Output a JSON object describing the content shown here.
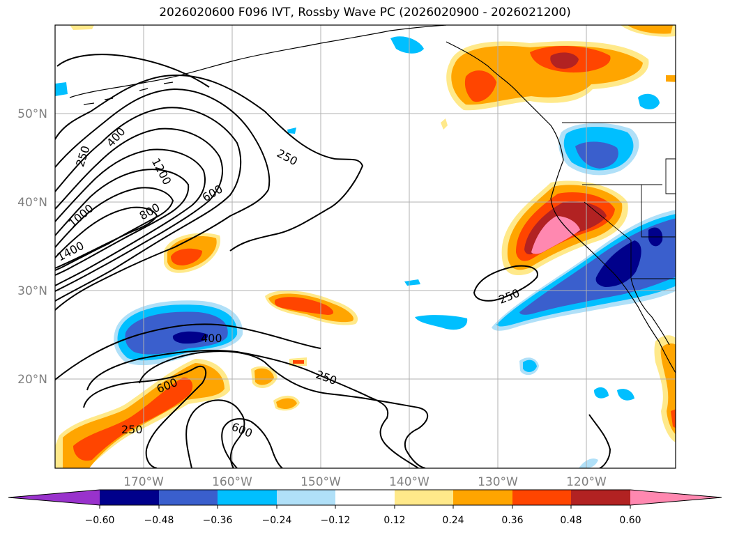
{
  "title": "2026020600 F096 IVT, Rossby Wave PC (2026020900 - 2026021200)",
  "colors": {
    "background": "#ffffff",
    "ocean": "#ffffff",
    "gridline": "#b0b0b0",
    "contour": "#000000",
    "pos_012": "#ffe98a",
    "pos_024": "#ffa500",
    "pos_036": "#ff4500",
    "pos_048": "#b22222",
    "pos_060": "#ff88b0",
    "neg_012": "#b0e0f8",
    "neg_024": "#00bfff",
    "neg_036": "#3a5fcd",
    "neg_048": "#00008b",
    "neg_060": "#9932cc"
  },
  "axes": {
    "lon_ticks": [
      "170°W",
      "160°W",
      "150°W",
      "140°W",
      "130°W",
      "120°W"
    ],
    "lat_ticks": [
      "50°N",
      "40°N",
      "30°N",
      "20°N"
    ]
  },
  "contour_labels": [
    "250",
    "400",
    "1200",
    "250",
    "1000",
    "800",
    "600",
    "1400",
    "250",
    "400",
    "600",
    "250",
    "250",
    "600"
  ],
  "colorbar": {
    "ticks": [
      "−0.60",
      "−0.48",
      "−0.36",
      "−0.24",
      "−0.12",
      "0.12",
      "0.24",
      "0.36",
      "0.48",
      "0.60"
    ],
    "colors": [
      "#9932cc",
      "#00008b",
      "#3a5fcd",
      "#00bfff",
      "#b0e0f8",
      "#ffffff",
      "#ffe98a",
      "#ffa500",
      "#ff4500",
      "#b22222",
      "#ff88b0"
    ]
  }
}
